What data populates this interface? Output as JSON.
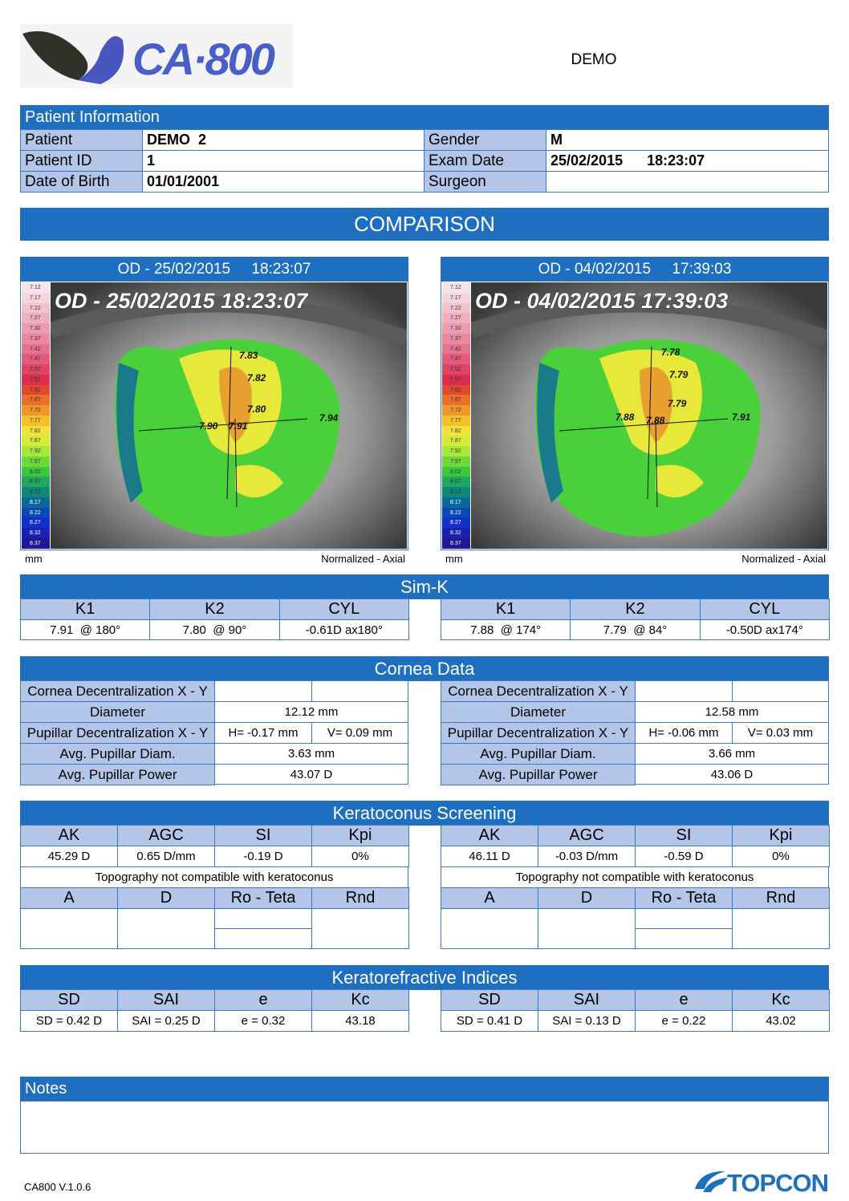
{
  "header": {
    "logo": "CA·800",
    "label": "DEMO"
  },
  "patient": {
    "title": "Patient Information",
    "rows": [
      [
        "Patient",
        "DEMO  2",
        "Gender",
        "M"
      ],
      [
        "Patient ID",
        "1",
        "Exam Date",
        "25/02/2015      18:23:07"
      ],
      [
        "Date of Birth",
        "01/01/2001",
        "Surgeon"
      ]
    ]
  },
  "comparison": {
    "title": "COMPARISON",
    "maps": [
      {
        "header": "OD - 25/02/2015     18:23:07",
        "overlay": "OD - 25/02/2015     18:23:07",
        "scale": [
          "7.12",
          "7.17",
          "7.22",
          "7.27",
          "7.32",
          "7.37",
          "7.42",
          "7.47",
          "7.52",
          "7.57",
          "7.62",
          "7.67",
          "7.72",
          "7.77",
          "7.82",
          "7.87",
          "7.92",
          "7.97",
          "8.02",
          "8.07",
          "8.12",
          "8.17",
          "8.22",
          "8.27",
          "8.32",
          "8.37"
        ],
        "unit": "mm",
        "mode": "Normalized - Axial",
        "labels": [
          "7.83",
          "7.82",
          "7.80",
          "7.90",
          "7.91",
          "7.94"
        ]
      },
      {
        "header": "OD - 04/02/2015     17:39:03",
        "overlay": "OD - 04/02/2015     17:39:03",
        "scale": [
          "7.12",
          "7.17",
          "7.22",
          "7.27",
          "7.32",
          "7.37",
          "7.42",
          "7.47",
          "7.52",
          "7.57",
          "7.62",
          "7.67",
          "7.72",
          "7.77",
          "7.82",
          "7.87",
          "7.92",
          "7.97",
          "8.02",
          "8.07",
          "8.12",
          "8.17",
          "8.22",
          "8.27",
          "8.32",
          "8.37"
        ],
        "unit": "mm",
        "mode": "Normalized - Axial",
        "labels": [
          "7.78",
          "7.79",
          "7.79",
          "7.88",
          "7.88",
          "7.91"
        ]
      }
    ]
  },
  "simk": {
    "title": "Sim-K",
    "headers": [
      "K1",
      "K2",
      "CYL"
    ],
    "eyes": [
      [
        "7.91  @ 180°",
        "7.80  @ 90°",
        "-0.61D ax180°"
      ],
      [
        "7.88  @ 174°",
        "7.79  @ 84°",
        "-0.50D ax174°"
      ]
    ]
  },
  "cornea": {
    "title": "Cornea Data",
    "labels": [
      "Cornea Decentralization X - Y",
      "Diameter",
      "Pupillar Decentralization X - Y",
      "Avg. Pupillar Diam.",
      "Avg. Pupillar Power"
    ],
    "eyes": [
      {
        "diameter": "12.12 mm",
        "pupil_x": "H= -0.17 mm",
        "pupil_y": "V= 0.09 mm",
        "pupil_diam": "3.63 mm",
        "pupil_power": "43.07 D"
      },
      {
        "diameter": "12.58 mm",
        "pupil_x": "H= -0.06 mm",
        "pupil_y": "V= 0.03 mm",
        "pupil_diam": "3.66 mm",
        "pupil_power": "43.06 D"
      }
    ]
  },
  "keratoconus": {
    "title": "Keratoconus Screening",
    "headers": [
      "AK",
      "AGC",
      "SI",
      "Kpi"
    ],
    "headers2": [
      "A",
      "D",
      "Ro - Teta",
      "Rnd"
    ],
    "eyes": [
      {
        "values": [
          "45.29 D",
          "0.65 D/mm",
          "-0.19 D",
          "0%"
        ],
        "result": "Topography not compatible with keratoconus"
      },
      {
        "values": [
          "46.11 D",
          "-0.03 D/mm",
          "-0.59 D",
          "0%"
        ],
        "result": "Topography not compatible with keratoconus"
      }
    ]
  },
  "indices": {
    "title": "Keratorefractive Indices",
    "headers": [
      "SD",
      "SAI",
      "e",
      "Kc"
    ],
    "eyes": [
      [
        "SD = 0.42 D",
        "SAI = 0.25 D",
        "e = 0.32",
        "43.18"
      ],
      [
        "SD = 0.41 D",
        "SAI = 0.13 D",
        "e = 0.22",
        "43.02"
      ]
    ]
  },
  "notes": {
    "title": "Notes"
  },
  "footer": {
    "version": "CA800 V.1.0.6",
    "brand": "TOPCON"
  }
}
